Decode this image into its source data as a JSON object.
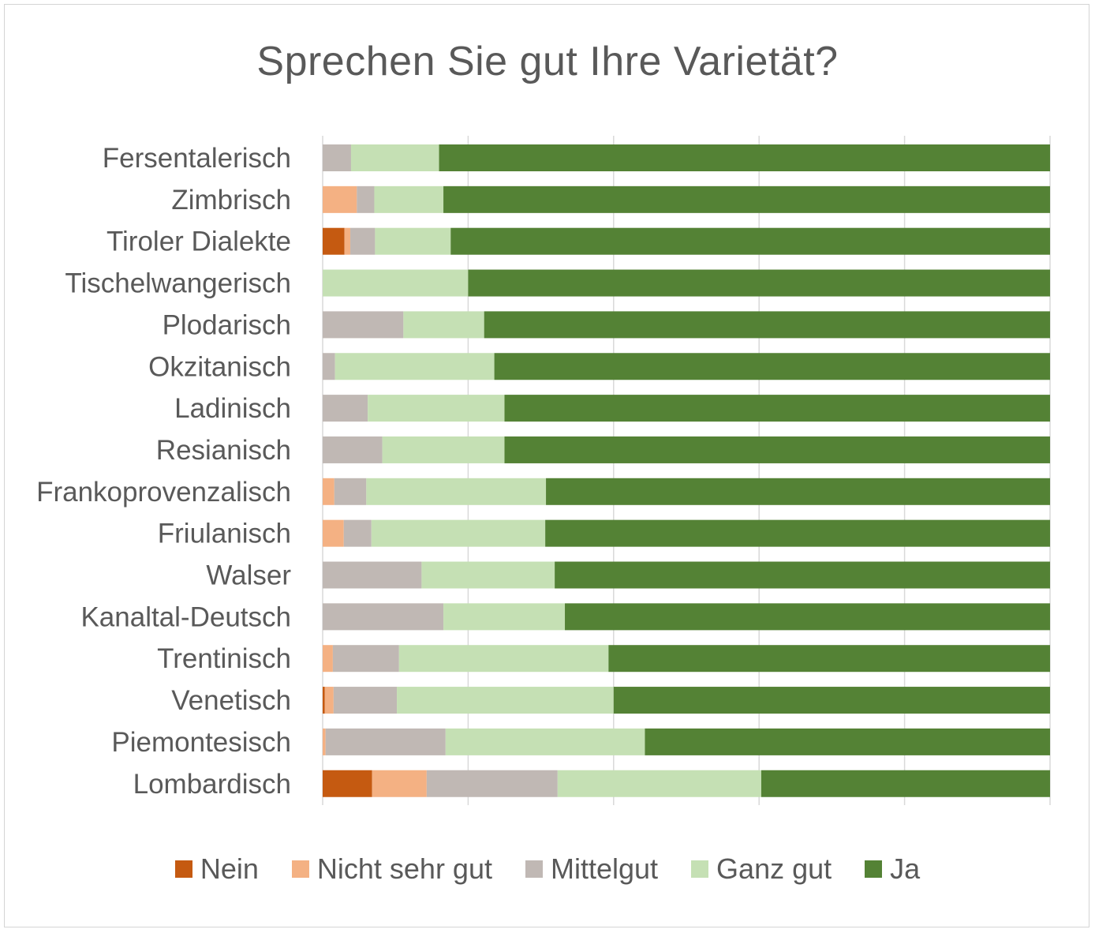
{
  "chart_data": {
    "type": "bar",
    "orientation": "horizontal",
    "stacked": true,
    "percent_stacked": true,
    "title": "Sprechen Sie gut Ihre Varietät?",
    "xlabel": "",
    "ylabel": "",
    "xlim": [
      0,
      100
    ],
    "tick_labels_shown": false,
    "grid": "vertical",
    "legend_position": "bottom",
    "categories": [
      "Fersentalerisch",
      "Zimbrisch",
      "Tiroler Dialekte",
      "Tischelwangerisch",
      "Plodarisch",
      "Okzitanisch",
      "Ladinisch",
      "Resianisch",
      "Frankoprovenzalisch",
      "Friulanisch",
      "Walser",
      "Kanaltal-Deutsch",
      "Trentinisch",
      "Venetisch",
      "Piemontesisch",
      "Lombardisch"
    ],
    "series": [
      {
        "name": "Nein",
        "color": "#c55a11",
        "values": [
          0,
          0,
          3,
          0,
          0,
          0,
          0,
          0,
          0,
          0,
          0,
          0,
          0,
          0.3,
          0,
          6.8
        ]
      },
      {
        "name": "Nicht sehr gut",
        "color": "#f4b183",
        "values": [
          0,
          4.7,
          0.8,
          0,
          0,
          0,
          0,
          0,
          1.6,
          2.9,
          0,
          0,
          1.4,
          1.2,
          0.4,
          7.5
        ]
      },
      {
        "name": "Mittelgut",
        "color": "#c0b8b4",
        "values": [
          3.9,
          2.4,
          3.4,
          0,
          11.1,
          1.7,
          6.2,
          8.2,
          4.4,
          3.8,
          13.6,
          16.6,
          9.1,
          8.7,
          16.5,
          18.0
        ]
      },
      {
        "name": "Ganz gut",
        "color": "#c5e0b4",
        "values": [
          12.1,
          9.5,
          10.4,
          20.0,
          11.1,
          21.9,
          18.8,
          16.8,
          24.7,
          23.9,
          18.3,
          16.7,
          28.8,
          29.8,
          27.4,
          28.0
        ]
      },
      {
        "name": "Ja",
        "color": "#548235",
        "values": [
          84.0,
          83.4,
          82.4,
          80.0,
          77.8,
          76.4,
          75.0,
          75.0,
          69.3,
          69.4,
          68.1,
          66.7,
          60.7,
          60.0,
          55.7,
          39.7
        ]
      }
    ]
  }
}
